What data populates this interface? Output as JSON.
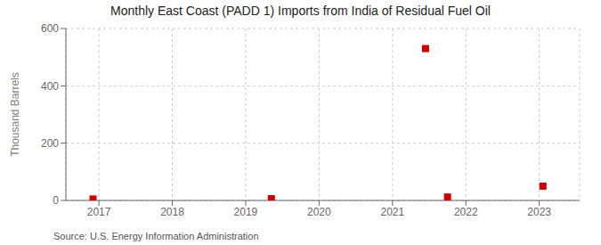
{
  "chart_data": {
    "type": "scatter",
    "title": "Monthly East Coast (PADD 1) Imports from India of Residual Fuel Oil",
    "y_label": "Thousand Barrels",
    "annotations": [
      "Source: U.S. Energy Information Administration"
    ],
    "x": [
      2016.92,
      2019.35,
      2021.45,
      2021.75,
      2023.05
    ],
    "values": [
      5,
      6,
      530,
      12,
      50
    ],
    "color": "#cc0000",
    "marker": "square",
    "xlim": [
      2016.55,
      2023.55
    ],
    "xticks": [
      2017,
      2018,
      2019,
      2020,
      2021,
      2022,
      2023
    ],
    "ylim": [
      0,
      600
    ],
    "yticks": [
      0,
      200,
      400,
      600
    ],
    "grid": true
  }
}
